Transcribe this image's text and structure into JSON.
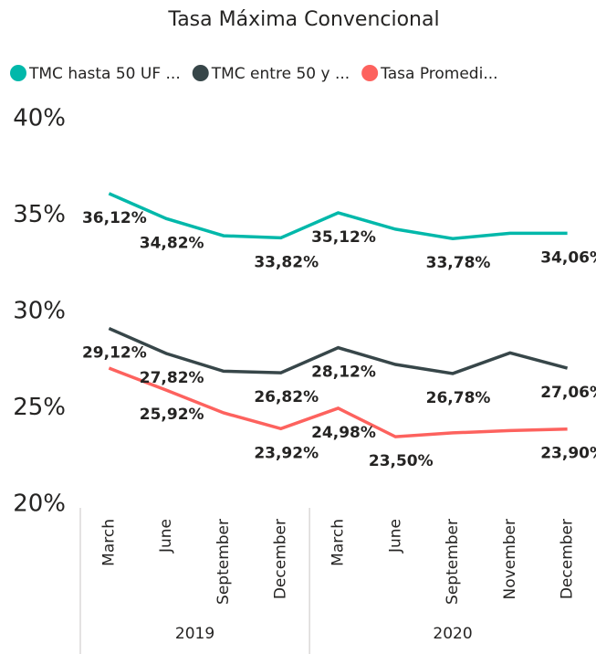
{
  "chart_data": {
    "type": "line",
    "title": "Tasa Máxima Convencional",
    "categories": [
      "March",
      "June",
      "September",
      "December",
      "March",
      "June",
      "September",
      "November",
      "December"
    ],
    "category_years": [
      "2019",
      "2019",
      "2019",
      "2019",
      "2020",
      "2020",
      "2020",
      "2020",
      "2020"
    ],
    "series": [
      {
        "name": "TMC hasta 50 UF ...",
        "color": "#01B8AA",
        "values": [
          36.12,
          34.82,
          33.93,
          33.82,
          35.12,
          34.27,
          33.78,
          34.06,
          34.06
        ],
        "value_labels": [
          "36,12%",
          "34,82%",
          null,
          "33,82%",
          "35,12%",
          null,
          "33,78%",
          null,
          "34,06%"
        ]
      },
      {
        "name": "TMC entre 50 y ...",
        "color": "#374649",
        "values": [
          29.12,
          27.82,
          26.9,
          26.82,
          28.12,
          27.25,
          26.78,
          27.85,
          27.06
        ],
        "value_labels": [
          "29,12%",
          "27,82%",
          null,
          "26,82%",
          "28,12%",
          null,
          "26,78%",
          null,
          "27,06%"
        ]
      },
      {
        "name": "Tasa Promedi...",
        "color": "#FD625E",
        "values": [
          27.06,
          25.92,
          24.74,
          23.92,
          24.98,
          23.5,
          23.7,
          23.82,
          23.9
        ],
        "value_labels": [
          null,
          "25,92%",
          null,
          "23,92%",
          "24,98%",
          "23,50%",
          null,
          null,
          "23,90%"
        ]
      }
    ],
    "ylim": [
      20,
      40
    ],
    "yticks": [
      {
        "value": 20,
        "label": "20%"
      },
      {
        "value": 25,
        "label": "25%"
      },
      {
        "value": 30,
        "label": "30%"
      },
      {
        "value": 35,
        "label": "35%"
      },
      {
        "value": 40,
        "label": "40%"
      }
    ]
  }
}
